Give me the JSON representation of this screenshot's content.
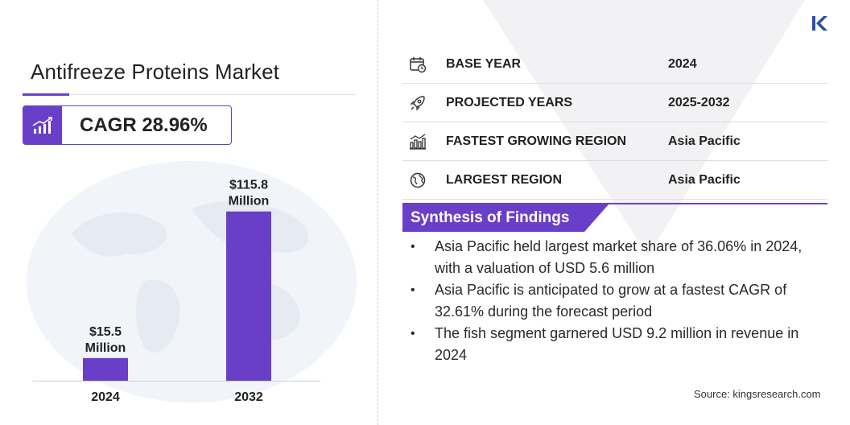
{
  "header": {
    "title": "Antifreeze Proteins Market",
    "cagr": "CAGR 28.96%"
  },
  "chart_data": {
    "type": "bar",
    "categories": [
      "2024",
      "2032"
    ],
    "values": [
      15.5,
      115.8
    ],
    "data_labels": [
      [
        "$15.5",
        "Million"
      ],
      [
        "$115.8",
        "Million"
      ]
    ],
    "title": "",
    "xlabel": "",
    "ylabel": "",
    "ylim": [
      0,
      125
    ],
    "grid": false,
    "bar_color": "#6a3fc8"
  },
  "info": {
    "rows": [
      {
        "icon": "calendar-icon",
        "label": "BASE YEAR",
        "value": "2024"
      },
      {
        "icon": "rocket-icon",
        "label": "PROJECTED YEARS",
        "value": "2025-2032"
      },
      {
        "icon": "growth-region-icon",
        "label": "FASTEST GROWING REGION",
        "value": "Asia Pacific"
      },
      {
        "icon": "globe-icon",
        "label": "LARGEST REGION",
        "value": "Asia Pacific"
      }
    ]
  },
  "synthesis": {
    "title": "Synthesis of Findings",
    "items": [
      "Asia Pacific held largest market share of 36.06% in 2024, with a valuation of USD 5.6 million",
      "Asia Pacific is anticipated to grow at a fastest CAGR of 32.61% during the forecast period",
      "The fish segment garnered USD 9.2 million in revenue in 2024"
    ]
  },
  "footer": {
    "source": "Source:  kingsresearch.com"
  },
  "colors": {
    "accent": "#6a3fc8",
    "text": "#222222"
  }
}
